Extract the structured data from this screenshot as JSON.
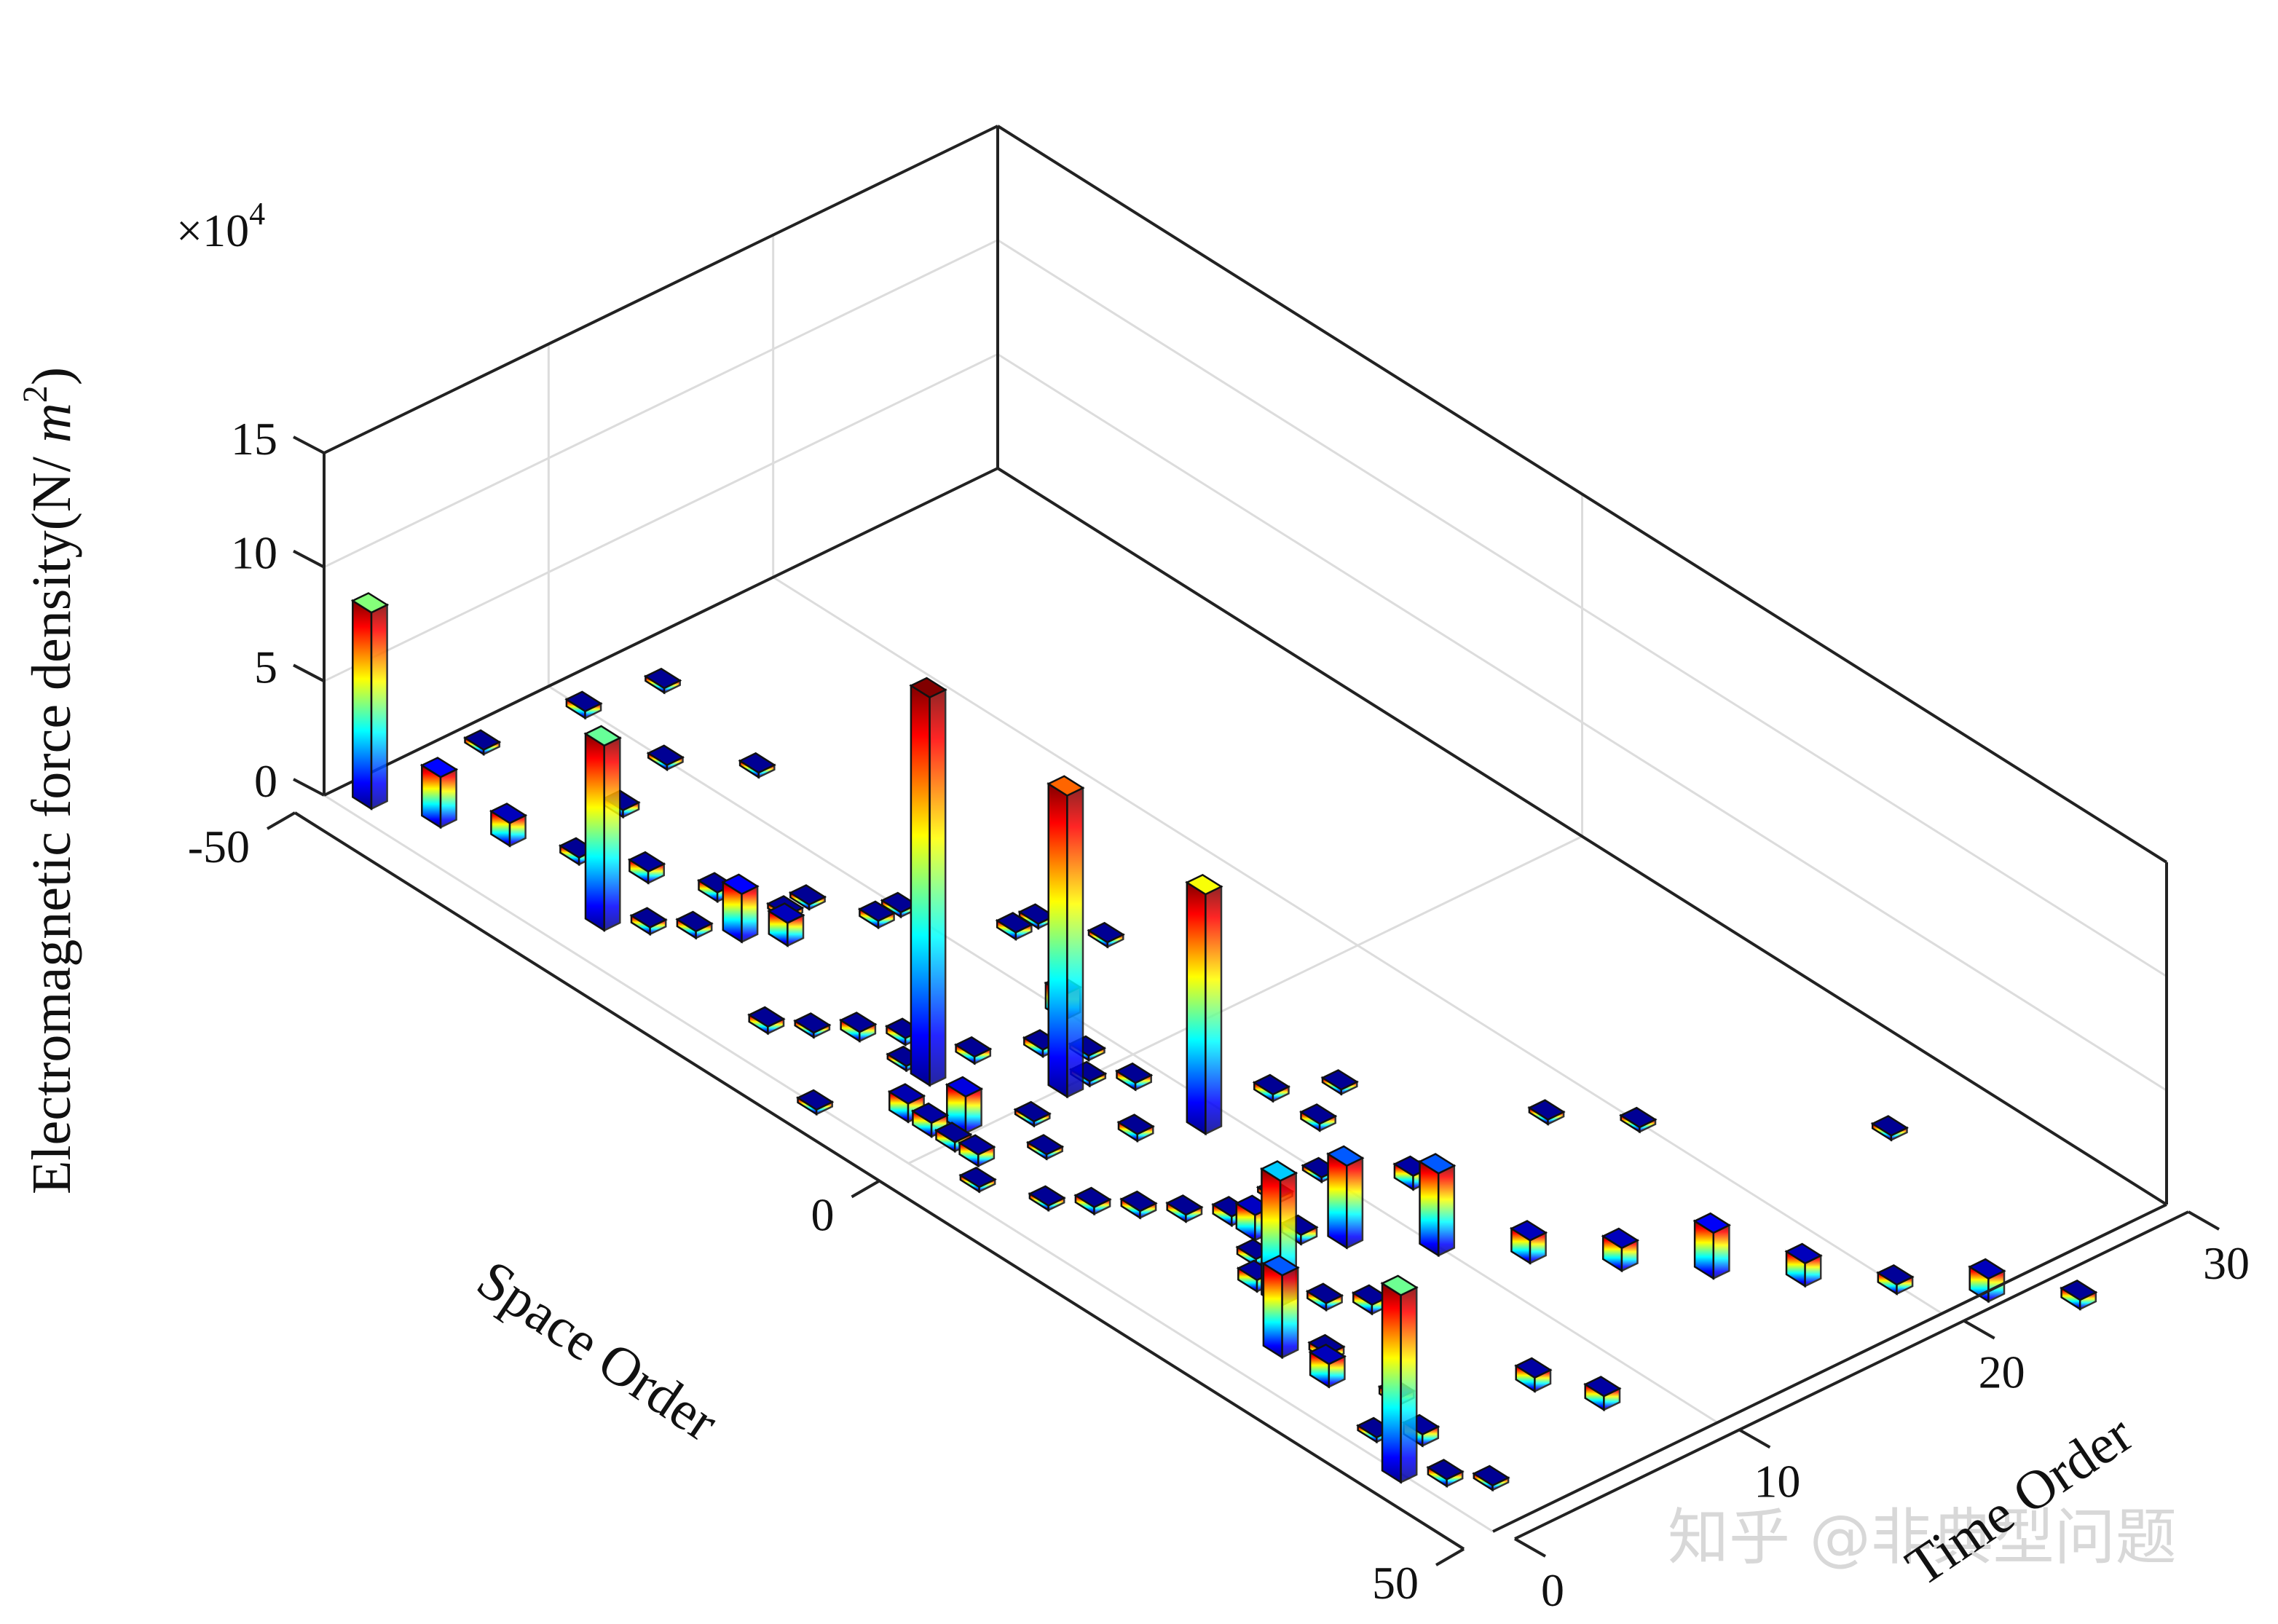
{
  "chart_data": {
    "type": "bar3",
    "title": "",
    "xlabel": "Space Order",
    "ylabel": "Time Order",
    "zlabel": "Electromagnetic force density(N/ m²)",
    "zlabel_parts": {
      "main": "Electromagnetic force density(N/ ",
      "unit_base": "m",
      "unit_exp": "2",
      "close": ")"
    },
    "exponent": {
      "prefix": "×10",
      "power": "4"
    },
    "xlim": [
      -50,
      50
    ],
    "ylim": [
      0,
      30
    ],
    "zlim": [
      0,
      15
    ],
    "xticks": [
      "-50",
      "0",
      "50"
    ],
    "yticks": [
      "0",
      "10",
      "20",
      "30"
    ],
    "zticks": [
      "0",
      "5",
      "10",
      "15"
    ],
    "zticks_values": [
      0,
      5,
      10,
      15
    ],
    "grid": true,
    "colormap": "jet",
    "bars": [
      {
        "x": -48,
        "y": 1,
        "z": 8.6
      },
      {
        "x": -44,
        "y": 2,
        "z": 2.2
      },
      {
        "x": -40,
        "y": 3,
        "z": 1.0
      },
      {
        "x": -36,
        "y": 4,
        "z": 0.3
      },
      {
        "x": -32,
        "y": 5,
        "z": 0.5
      },
      {
        "x": -28,
        "y": 6,
        "z": 0.4
      },
      {
        "x": -24,
        "y": 7,
        "z": 0.2
      },
      {
        "x": -24,
        "y": 8,
        "z": 0.2
      },
      {
        "x": -20,
        "y": 9,
        "z": 0.3
      },
      {
        "x": -20,
        "y": 10,
        "z": 0.2
      },
      {
        "x": -14,
        "y": 12,
        "z": 0.3
      },
      {
        "x": -14,
        "y": 13,
        "z": 0.2
      },
      {
        "x": -10,
        "y": 14,
        "z": 0.2
      },
      {
        "x": -6,
        "y": 6,
        "z": 0.3
      },
      {
        "x": -48,
        "y": 6,
        "z": 0.2
      },
      {
        "x": -47,
        "y": 10,
        "z": 0.3
      },
      {
        "x": -46,
        "y": 13,
        "z": 0.2
      },
      {
        "x": -40,
        "y": 10,
        "z": 0.2
      },
      {
        "x": -38,
        "y": 7,
        "z": 0.3
      },
      {
        "x": -36,
        "y": 12,
        "z": 0.2
      },
      {
        "x": -30,
        "y": 2,
        "z": 8.1
      },
      {
        "x": -28,
        "y": 3,
        "z": 0.3
      },
      {
        "x": -26,
        "y": 4,
        "z": 0.3
      },
      {
        "x": -24,
        "y": 5,
        "z": 2.1
      },
      {
        "x": -22,
        "y": 6,
        "z": 1.0
      },
      {
        "x": -16,
        "y": 2,
        "z": 0.3
      },
      {
        "x": -14,
        "y": 3,
        "z": 0.2
      },
      {
        "x": -12,
        "y": 4,
        "z": 0.4
      },
      {
        "x": -10,
        "y": 5,
        "z": 0.3
      },
      {
        "x": -8,
        "y": 4,
        "z": 0.2
      },
      {
        "x": -4,
        "y": 8,
        "z": 0.3
      },
      {
        "x": -2,
        "y": 9,
        "z": 0.2
      },
      {
        "x": 0,
        "y": 8,
        "z": 0.2
      },
      {
        "x": 2,
        "y": 9,
        "z": 0.3
      },
      {
        "x": -4,
        "y": 2,
        "z": 0.8
      },
      {
        "x": -2,
        "y": 2,
        "z": 0.6
      },
      {
        "x": 0,
        "y": 2,
        "z": 0.4
      },
      {
        "x": 2,
        "y": 2,
        "z": 0.5
      },
      {
        "x": -6,
        "y": 4,
        "z": 17.0
      },
      {
        "x": 0,
        "y": 7,
        "z": 13.2
      },
      {
        "x": -1,
        "y": 3,
        "z": 1.6
      },
      {
        "x": 1,
        "y": 5,
        "z": 0.2
      },
      {
        "x": 4,
        "y": 4,
        "z": 0.2
      },
      {
        "x": 8,
        "y": 9,
        "z": 10.5
      },
      {
        "x": 8,
        "y": 12,
        "z": 0.3
      },
      {
        "x": 6,
        "y": 7,
        "z": 0.3
      },
      {
        "x": -8,
        "y": 0,
        "z": 0.2
      },
      {
        "x": -6,
        "y": 10,
        "z": 1.1
      },
      {
        "x": 12,
        "y": 12,
        "z": 0.3
      },
      {
        "x": 10,
        "y": 14,
        "z": 0.2
      },
      {
        "x": 4,
        "y": 1,
        "z": 0.2
      },
      {
        "x": 8,
        "y": 2,
        "z": 0.2
      },
      {
        "x": 10,
        "y": 3,
        "z": 0.3
      },
      {
        "x": 12,
        "y": 4,
        "z": 0.3
      },
      {
        "x": 14,
        "y": 5,
        "z": 0.3
      },
      {
        "x": 16,
        "y": 6,
        "z": 0.4
      },
      {
        "x": 16,
        "y": 8,
        "z": 0.2
      },
      {
        "x": 16,
        "y": 10,
        "z": 0.2
      },
      {
        "x": 20,
        "y": 12,
        "z": 0.6
      },
      {
        "x": 18,
        "y": 6,
        "z": 1.1
      },
      {
        "x": 20,
        "y": 5,
        "z": 0.3
      },
      {
        "x": 20,
        "y": 7,
        "z": 0.4
      },
      {
        "x": 22,
        "y": 4,
        "z": 0.5
      },
      {
        "x": 22,
        "y": 8,
        "z": 3.6
      },
      {
        "x": 26,
        "y": 10,
        "z": 3.6
      },
      {
        "x": 30,
        "y": 12,
        "z": 1.0
      },
      {
        "x": 34,
        "y": 14,
        "z": 1.0
      },
      {
        "x": 38,
        "y": 16,
        "z": 2.0
      },
      {
        "x": 42,
        "y": 18,
        "z": 1.0
      },
      {
        "x": 46,
        "y": 20,
        "z": 0.4
      },
      {
        "x": 50,
        "y": 22,
        "z": 1.0
      },
      {
        "x": 54,
        "y": 24,
        "z": 0.4
      },
      {
        "x": 20,
        "y": 18,
        "z": 0.2
      },
      {
        "x": 24,
        "y": 20,
        "z": 0.2
      },
      {
        "x": 34,
        "y": 26,
        "z": 0.2
      },
      {
        "x": 24,
        "y": 4,
        "z": 5.5
      },
      {
        "x": 26,
        "y": 5,
        "z": 0.3
      },
      {
        "x": 28,
        "y": 6,
        "z": 0.4
      },
      {
        "x": 28,
        "y": 2,
        "z": 3.6
      },
      {
        "x": 30,
        "y": 3,
        "z": 0.3
      },
      {
        "x": 32,
        "y": 2,
        "z": 1.0
      },
      {
        "x": 36,
        "y": 3,
        "z": 0.3
      },
      {
        "x": 38,
        "y": 1,
        "z": 0.2
      },
      {
        "x": 40,
        "y": 2,
        "z": 0.5
      },
      {
        "x": 40,
        "y": 7,
        "z": 0.6
      },
      {
        "x": 44,
        "y": 8,
        "z": 0.6
      },
      {
        "x": 42,
        "y": 0,
        "z": 8.2
      },
      {
        "x": 44,
        "y": 1,
        "z": 0.3
      },
      {
        "x": 46,
        "y": 2,
        "z": 0.2
      }
    ]
  },
  "watermark": "知乎 @非典型问题"
}
